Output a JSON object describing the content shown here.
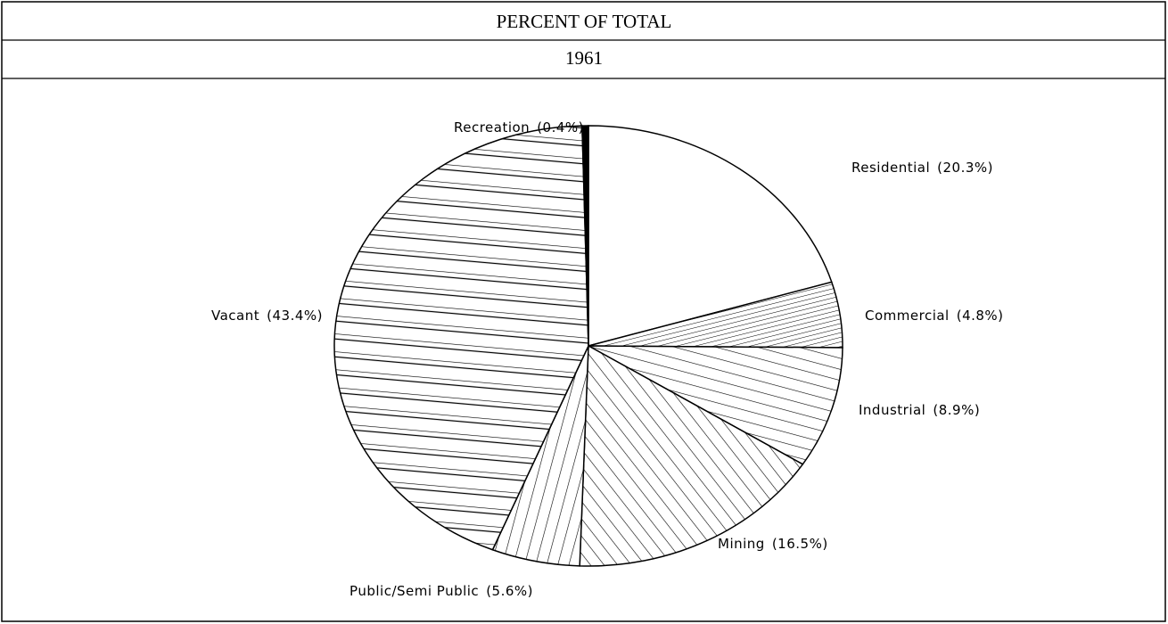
{
  "chart_data": {
    "type": "pie",
    "title": "PERCENT OF TOTAL",
    "subtitle": "1961",
    "categories": [
      "Residential",
      "Commercial",
      "Industrial",
      "Mining",
      "Public/Semi Public",
      "Vacant",
      "Recreation"
    ],
    "values": [
      20.3,
      4.8,
      8.9,
      16.5,
      5.6,
      43.4,
      0.4
    ],
    "value_labels": [
      "(20.3%)",
      "(4.8%)",
      "(8.9%)",
      "(16.5%)",
      "(5.6%)",
      "(43.4%)",
      "(0.4%)"
    ]
  }
}
